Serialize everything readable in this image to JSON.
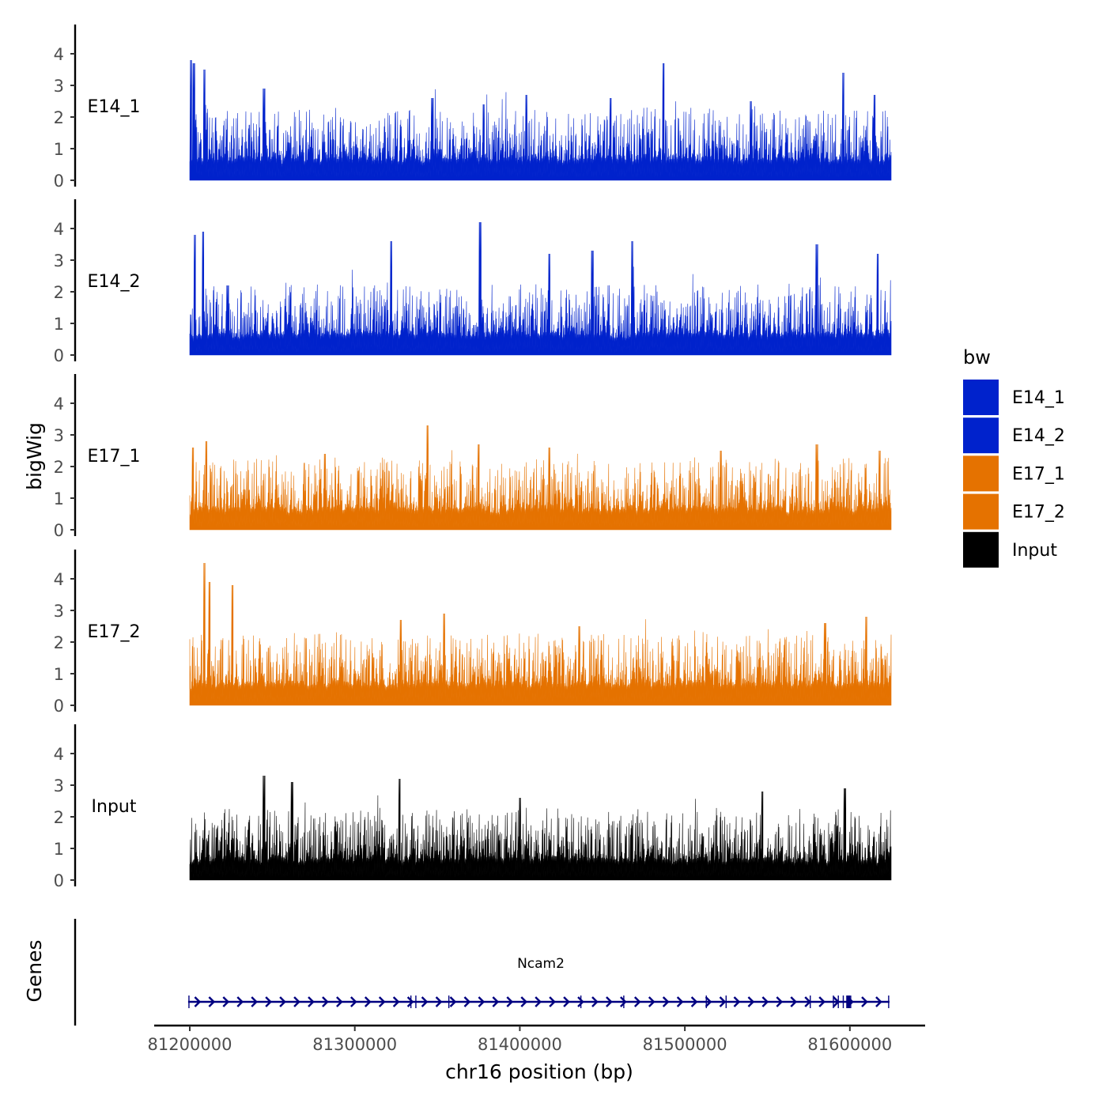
{
  "chart_data": {
    "type": "area",
    "ylabel": "bigWig",
    "genes_label": "Genes",
    "xlabel": "chr16 position (bp)",
    "x_range": [
      81200000,
      81625000
    ],
    "x_ticks": [
      "81200000",
      "81300000",
      "81400000",
      "81500000",
      "81600000"
    ],
    "x_tick_values": [
      81200000,
      81300000,
      81400000,
      81500000,
      81600000
    ],
    "ylim": [
      0,
      4.8
    ],
    "y_ticks": [
      "0",
      "1",
      "2",
      "3",
      "4"
    ],
    "y_tick_values": [
      0,
      1,
      2,
      3,
      4
    ],
    "tracks": [
      {
        "name": "E14_1",
        "color": "#0022CC",
        "seed": 11,
        "peaks": [
          [
            81200800,
            3.8
          ],
          [
            81202500,
            3.7
          ],
          [
            81209000,
            3.5
          ],
          [
            81245000,
            2.9
          ],
          [
            81347000,
            2.6
          ],
          [
            81378000,
            2.4
          ],
          [
            81404000,
            2.7
          ],
          [
            81455000,
            2.6
          ],
          [
            81487000,
            3.7
          ],
          [
            81540000,
            2.5
          ],
          [
            81596000,
            3.4
          ],
          [
            81615000,
            2.7
          ]
        ]
      },
      {
        "name": "E14_2",
        "color": "#0022CC",
        "seed": 23,
        "peaks": [
          [
            81203000,
            3.8
          ],
          [
            81208000,
            3.9
          ],
          [
            81223000,
            2.2
          ],
          [
            81322000,
            3.6
          ],
          [
            81376000,
            4.2
          ],
          [
            81418000,
            3.2
          ],
          [
            81444000,
            3.3
          ],
          [
            81468000,
            3.6
          ],
          [
            81580000,
            3.5
          ],
          [
            81617000,
            3.2
          ]
        ]
      },
      {
        "name": "E17_1",
        "color": "#E57200",
        "seed": 37,
        "peaks": [
          [
            81202000,
            2.6
          ],
          [
            81210000,
            2.8
          ],
          [
            81282000,
            2.4
          ],
          [
            81344000,
            3.3
          ],
          [
            81375000,
            2.7
          ],
          [
            81418000,
            2.6
          ],
          [
            81522000,
            2.5
          ],
          [
            81580000,
            2.7
          ],
          [
            81618000,
            2.5
          ]
        ]
      },
      {
        "name": "E17_2",
        "color": "#E57200",
        "seed": 41,
        "peaks": [
          [
            81209000,
            4.5
          ],
          [
            81212000,
            3.9
          ],
          [
            81226000,
            3.8
          ],
          [
            81328000,
            2.7
          ],
          [
            81354000,
            2.9
          ],
          [
            81436000,
            2.5
          ],
          [
            81585000,
            2.6
          ],
          [
            81610000,
            2.8
          ]
        ]
      },
      {
        "name": "Input",
        "color": "#000000",
        "seed": 53,
        "peaks": [
          [
            81245000,
            3.3
          ],
          [
            81262000,
            3.1
          ],
          [
            81327000,
            3.2
          ],
          [
            81400000,
            2.6
          ],
          [
            81547000,
            2.8
          ],
          [
            81597000,
            2.9
          ]
        ]
      }
    ],
    "legend": {
      "title": "bw",
      "entries": [
        {
          "label": "E14_1",
          "color": "#0022CC"
        },
        {
          "label": "E14_2",
          "color": "#0022CC"
        },
        {
          "label": "E17_1",
          "color": "#E57200"
        },
        {
          "label": "E17_2",
          "color": "#E57200"
        },
        {
          "label": "Input",
          "color": "#000000"
        }
      ]
    },
    "gene": {
      "name": "Ncam2",
      "chrom": "chr16",
      "start": 81199000,
      "end": 81624000,
      "strand": "+",
      "color": "#000080",
      "exons": [
        81199500,
        81334000,
        81337000,
        81357000,
        81437000,
        81463000,
        81513000,
        81525000,
        81576000,
        81590000,
        81593000,
        81596000,
        81598500,
        81599500,
        81600500,
        81623500
      ]
    }
  }
}
